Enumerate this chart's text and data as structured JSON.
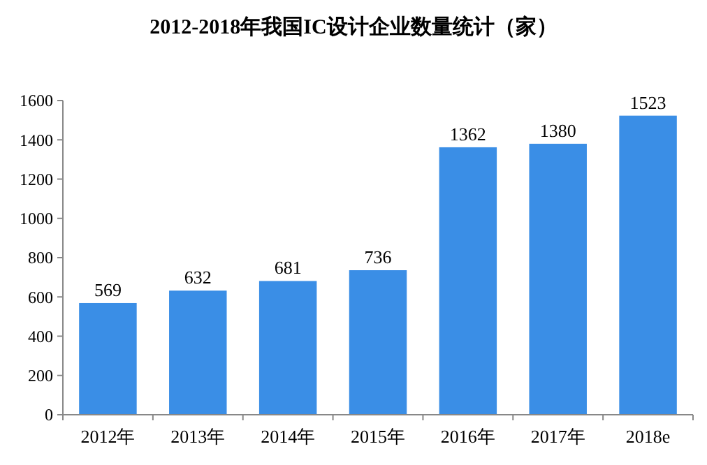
{
  "chart_data": {
    "type": "bar",
    "title": "2012-2018年我国IC设计企业数量统计（家）",
    "categories": [
      "2012年",
      "2013年",
      "2014年",
      "2015年",
      "2016年",
      "2017年",
      "2018e"
    ],
    "values": [
      569,
      632,
      681,
      736,
      1362,
      1380,
      1523
    ],
    "color": "#3a8ee6",
    "ylim": [
      0,
      1600
    ],
    "yticks": [
      0,
      200,
      400,
      600,
      800,
      1000,
      1200,
      1400,
      1600
    ],
    "grid": false,
    "data_labels": true
  }
}
